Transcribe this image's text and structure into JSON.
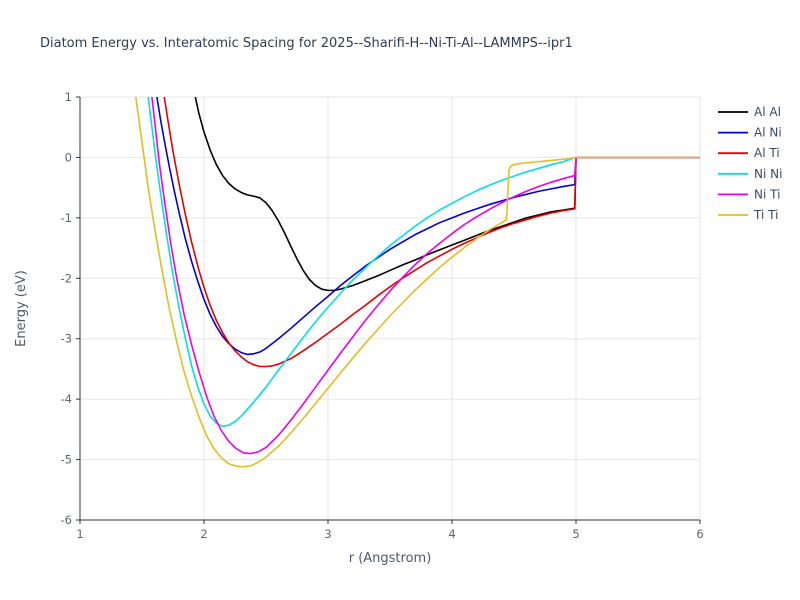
{
  "chart_data": {
    "type": "line",
    "title": "Diatom Energy vs. Interatomic Spacing for 2025--Sharifi-H--Ni-Ti-Al--LAMMPS--ipr1",
    "xlabel": "r (Angstrom)",
    "ylabel": "Energy (eV)",
    "xlim": [
      1,
      6
    ],
    "ylim": [
      -6,
      1
    ],
    "xticks": [
      1,
      2,
      3,
      4,
      5,
      6
    ],
    "yticks": [
      -6,
      -5,
      -4,
      -3,
      -2,
      -1,
      0,
      1
    ],
    "grid": true,
    "legend_position": "right-outside",
    "colors": {
      "grid": "#e6e6e6",
      "axis": "#333333",
      "tick_label": "#5b6472",
      "axis_label": "#4d5a6a",
      "title": "#2e3d54",
      "legend_text": "#3a4a63"
    },
    "series": [
      {
        "name": "Al Al",
        "color": "#000000",
        "points": [
          [
            1.93,
            1.0
          ],
          [
            1.96,
            0.72
          ],
          [
            2.0,
            0.42
          ],
          [
            2.05,
            0.12
          ],
          [
            2.1,
            -0.12
          ],
          [
            2.15,
            -0.3
          ],
          [
            2.2,
            -0.43
          ],
          [
            2.25,
            -0.52
          ],
          [
            2.3,
            -0.58
          ],
          [
            2.35,
            -0.62
          ],
          [
            2.4,
            -0.64
          ],
          [
            2.45,
            -0.67
          ],
          [
            2.5,
            -0.75
          ],
          [
            2.55,
            -0.88
          ],
          [
            2.6,
            -1.05
          ],
          [
            2.65,
            -1.25
          ],
          [
            2.7,
            -1.47
          ],
          [
            2.75,
            -1.68
          ],
          [
            2.8,
            -1.87
          ],
          [
            2.85,
            -2.02
          ],
          [
            2.9,
            -2.12
          ],
          [
            2.95,
            -2.18
          ],
          [
            3.0,
            -2.2
          ],
          [
            3.05,
            -2.2
          ],
          [
            3.1,
            -2.18
          ],
          [
            3.2,
            -2.12
          ],
          [
            3.3,
            -2.04
          ],
          [
            3.4,
            -1.96
          ],
          [
            3.5,
            -1.87
          ],
          [
            3.6,
            -1.78
          ],
          [
            3.7,
            -1.7
          ],
          [
            3.8,
            -1.61
          ],
          [
            3.9,
            -1.53
          ],
          [
            4.0,
            -1.45
          ],
          [
            4.1,
            -1.37
          ],
          [
            4.2,
            -1.29
          ],
          [
            4.3,
            -1.21
          ],
          [
            4.4,
            -1.14
          ],
          [
            4.5,
            -1.07
          ],
          [
            4.6,
            -1.0
          ],
          [
            4.7,
            -0.95
          ],
          [
            4.8,
            -0.9
          ],
          [
            4.9,
            -0.87
          ],
          [
            4.99,
            -0.84
          ],
          [
            5.0,
            0.0
          ],
          [
            6.0,
            0.0
          ]
        ]
      },
      {
        "name": "Al Ni",
        "color": "#0000dd",
        "points": [
          [
            1.62,
            1.0
          ],
          [
            1.65,
            0.62
          ],
          [
            1.68,
            0.28
          ],
          [
            1.72,
            -0.15
          ],
          [
            1.76,
            -0.55
          ],
          [
            1.8,
            -0.92
          ],
          [
            1.85,
            -1.35
          ],
          [
            1.9,
            -1.72
          ],
          [
            1.95,
            -2.05
          ],
          [
            2.0,
            -2.35
          ],
          [
            2.05,
            -2.6
          ],
          [
            2.1,
            -2.8
          ],
          [
            2.15,
            -2.96
          ],
          [
            2.2,
            -3.08
          ],
          [
            2.25,
            -3.17
          ],
          [
            2.3,
            -3.23
          ],
          [
            2.35,
            -3.26
          ],
          [
            2.4,
            -3.25
          ],
          [
            2.45,
            -3.22
          ],
          [
            2.5,
            -3.16
          ],
          [
            2.6,
            -3.0
          ],
          [
            2.7,
            -2.83
          ],
          [
            2.8,
            -2.65
          ],
          [
            2.9,
            -2.47
          ],
          [
            3.0,
            -2.3
          ],
          [
            3.1,
            -2.12
          ],
          [
            3.2,
            -1.96
          ],
          [
            3.3,
            -1.8
          ],
          [
            3.4,
            -1.66
          ],
          [
            3.5,
            -1.52
          ],
          [
            3.6,
            -1.4
          ],
          [
            3.7,
            -1.28
          ],
          [
            3.8,
            -1.18
          ],
          [
            3.9,
            -1.08
          ],
          [
            4.0,
            -1.0
          ],
          [
            4.1,
            -0.92
          ],
          [
            4.2,
            -0.85
          ],
          [
            4.3,
            -0.78
          ],
          [
            4.4,
            -0.72
          ],
          [
            4.5,
            -0.66
          ],
          [
            4.6,
            -0.61
          ],
          [
            4.7,
            -0.56
          ],
          [
            4.8,
            -0.52
          ],
          [
            4.9,
            -0.48
          ],
          [
            4.99,
            -0.45
          ],
          [
            5.0,
            0.0
          ],
          [
            6.0,
            0.0
          ]
        ]
      },
      {
        "name": "Al Ti",
        "color": "#e60000",
        "points": [
          [
            1.68,
            1.0
          ],
          [
            1.71,
            0.6
          ],
          [
            1.75,
            0.1
          ],
          [
            1.8,
            -0.45
          ],
          [
            1.85,
            -0.95
          ],
          [
            1.9,
            -1.4
          ],
          [
            1.95,
            -1.8
          ],
          [
            2.0,
            -2.15
          ],
          [
            2.05,
            -2.45
          ],
          [
            2.1,
            -2.7
          ],
          [
            2.15,
            -2.9
          ],
          [
            2.2,
            -3.07
          ],
          [
            2.25,
            -3.2
          ],
          [
            2.3,
            -3.3
          ],
          [
            2.35,
            -3.38
          ],
          [
            2.4,
            -3.43
          ],
          [
            2.45,
            -3.46
          ],
          [
            2.5,
            -3.46
          ],
          [
            2.55,
            -3.45
          ],
          [
            2.6,
            -3.42
          ],
          [
            2.7,
            -3.33
          ],
          [
            2.8,
            -3.2
          ],
          [
            2.9,
            -3.06
          ],
          [
            3.0,
            -2.91
          ],
          [
            3.1,
            -2.76
          ],
          [
            3.2,
            -2.6
          ],
          [
            3.3,
            -2.45
          ],
          [
            3.4,
            -2.29
          ],
          [
            3.5,
            -2.14
          ],
          [
            3.6,
            -2.0
          ],
          [
            3.7,
            -1.87
          ],
          [
            3.8,
            -1.74
          ],
          [
            3.9,
            -1.63
          ],
          [
            4.0,
            -1.52
          ],
          [
            4.1,
            -1.42
          ],
          [
            4.2,
            -1.33
          ],
          [
            4.3,
            -1.24
          ],
          [
            4.4,
            -1.16
          ],
          [
            4.5,
            -1.09
          ],
          [
            4.6,
            -1.03
          ],
          [
            4.7,
            -0.97
          ],
          [
            4.8,
            -0.92
          ],
          [
            4.9,
            -0.88
          ],
          [
            4.99,
            -0.85
          ],
          [
            5.0,
            0.0
          ],
          [
            6.0,
            0.0
          ]
        ]
      },
      {
        "name": "Ni Ni",
        "color": "#00e0e6",
        "points": [
          [
            1.55,
            1.0
          ],
          [
            1.58,
            0.5
          ],
          [
            1.61,
            0.0
          ],
          [
            1.65,
            -0.6
          ],
          [
            1.7,
            -1.3
          ],
          [
            1.75,
            -1.95
          ],
          [
            1.8,
            -2.5
          ],
          [
            1.85,
            -3.0
          ],
          [
            1.9,
            -3.45
          ],
          [
            1.95,
            -3.8
          ],
          [
            2.0,
            -4.08
          ],
          [
            2.05,
            -4.28
          ],
          [
            2.1,
            -4.4
          ],
          [
            2.15,
            -4.45
          ],
          [
            2.2,
            -4.43
          ],
          [
            2.25,
            -4.37
          ],
          [
            2.3,
            -4.28
          ],
          [
            2.4,
            -4.05
          ],
          [
            2.5,
            -3.8
          ],
          [
            2.6,
            -3.52
          ],
          [
            2.7,
            -3.25
          ],
          [
            2.8,
            -2.98
          ],
          [
            2.9,
            -2.72
          ],
          [
            3.0,
            -2.48
          ],
          [
            3.1,
            -2.25
          ],
          [
            3.2,
            -2.03
          ],
          [
            3.3,
            -1.83
          ],
          [
            3.4,
            -1.64
          ],
          [
            3.5,
            -1.46
          ],
          [
            3.6,
            -1.3
          ],
          [
            3.7,
            -1.14
          ],
          [
            3.8,
            -1.0
          ],
          [
            3.9,
            -0.87
          ],
          [
            4.0,
            -0.76
          ],
          [
            4.1,
            -0.65
          ],
          [
            4.2,
            -0.55
          ],
          [
            4.3,
            -0.46
          ],
          [
            4.4,
            -0.38
          ],
          [
            4.5,
            -0.31
          ],
          [
            4.6,
            -0.24
          ],
          [
            4.7,
            -0.18
          ],
          [
            4.8,
            -0.12
          ],
          [
            4.9,
            -0.07
          ],
          [
            5.0,
            0.0
          ],
          [
            6.0,
            0.0
          ]
        ]
      },
      {
        "name": "Ni Ti",
        "color": "#ee00ee",
        "points": [
          [
            1.58,
            1.0
          ],
          [
            1.61,
            0.45
          ],
          [
            1.64,
            -0.1
          ],
          [
            1.68,
            -0.7
          ],
          [
            1.73,
            -1.4
          ],
          [
            1.78,
            -2.0
          ],
          [
            1.84,
            -2.6
          ],
          [
            1.9,
            -3.1
          ],
          [
            1.96,
            -3.55
          ],
          [
            2.02,
            -3.95
          ],
          [
            2.08,
            -4.28
          ],
          [
            2.14,
            -4.52
          ],
          [
            2.2,
            -4.7
          ],
          [
            2.26,
            -4.82
          ],
          [
            2.32,
            -4.89
          ],
          [
            2.38,
            -4.9
          ],
          [
            2.44,
            -4.87
          ],
          [
            2.5,
            -4.8
          ],
          [
            2.6,
            -4.6
          ],
          [
            2.7,
            -4.35
          ],
          [
            2.8,
            -4.08
          ],
          [
            2.9,
            -3.8
          ],
          [
            3.0,
            -3.52
          ],
          [
            3.1,
            -3.24
          ],
          [
            3.2,
            -2.97
          ],
          [
            3.3,
            -2.7
          ],
          [
            3.4,
            -2.45
          ],
          [
            3.5,
            -2.21
          ],
          [
            3.6,
            -1.99
          ],
          [
            3.7,
            -1.78
          ],
          [
            3.8,
            -1.59
          ],
          [
            3.9,
            -1.42
          ],
          [
            4.0,
            -1.26
          ],
          [
            4.1,
            -1.11
          ],
          [
            4.2,
            -0.98
          ],
          [
            4.3,
            -0.86
          ],
          [
            4.4,
            -0.75
          ],
          [
            4.5,
            -0.65
          ],
          [
            4.6,
            -0.56
          ],
          [
            4.7,
            -0.48
          ],
          [
            4.8,
            -0.41
          ],
          [
            4.9,
            -0.35
          ],
          [
            4.99,
            -0.3
          ],
          [
            5.0,
            0.0
          ],
          [
            6.0,
            0.0
          ]
        ]
      },
      {
        "name": "Ti Ti",
        "color": "#e4bd20",
        "points": [
          [
            1.45,
            1.0
          ],
          [
            1.48,
            0.55
          ],
          [
            1.51,
            0.1
          ],
          [
            1.55,
            -0.5
          ],
          [
            1.6,
            -1.15
          ],
          [
            1.66,
            -1.85
          ],
          [
            1.72,
            -2.5
          ],
          [
            1.78,
            -3.05
          ],
          [
            1.84,
            -3.55
          ],
          [
            1.9,
            -3.95
          ],
          [
            1.96,
            -4.3
          ],
          [
            2.02,
            -4.6
          ],
          [
            2.08,
            -4.82
          ],
          [
            2.14,
            -4.97
          ],
          [
            2.2,
            -5.07
          ],
          [
            2.26,
            -5.11
          ],
          [
            2.32,
            -5.12
          ],
          [
            2.38,
            -5.1
          ],
          [
            2.44,
            -5.04
          ],
          [
            2.5,
            -4.96
          ],
          [
            2.6,
            -4.78
          ],
          [
            2.7,
            -4.56
          ],
          [
            2.8,
            -4.32
          ],
          [
            2.9,
            -4.07
          ],
          [
            3.0,
            -3.82
          ],
          [
            3.1,
            -3.57
          ],
          [
            3.2,
            -3.32
          ],
          [
            3.3,
            -3.08
          ],
          [
            3.4,
            -2.85
          ],
          [
            3.5,
            -2.62
          ],
          [
            3.6,
            -2.41
          ],
          [
            3.7,
            -2.2
          ],
          [
            3.8,
            -2.01
          ],
          [
            3.9,
            -1.82
          ],
          [
            4.0,
            -1.65
          ],
          [
            4.1,
            -1.49
          ],
          [
            4.2,
            -1.34
          ],
          [
            4.3,
            -1.2
          ],
          [
            4.4,
            -1.08
          ],
          [
            4.44,
            -1.03
          ],
          [
            4.45,
            -0.6
          ],
          [
            4.46,
            -0.2
          ],
          [
            4.48,
            -0.13
          ],
          [
            4.55,
            -0.1
          ],
          [
            4.65,
            -0.08
          ],
          [
            4.75,
            -0.06
          ],
          [
            4.85,
            -0.04
          ],
          [
            4.95,
            -0.02
          ],
          [
            5.0,
            0.0
          ],
          [
            6.0,
            0.0
          ]
        ]
      }
    ]
  }
}
